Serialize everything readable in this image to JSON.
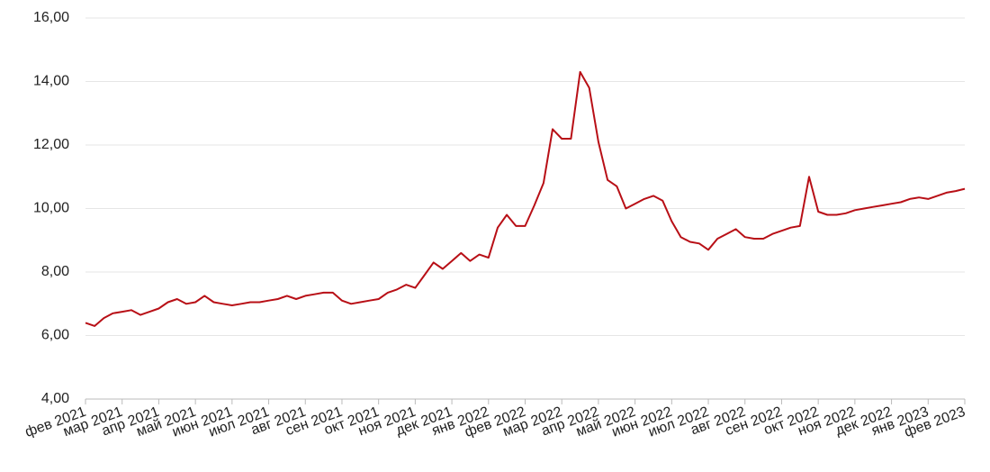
{
  "chart_data": {
    "type": "line",
    "categories": [
      "фев 2021",
      null,
      null,
      null,
      "мар 2021",
      null,
      null,
      null,
      "апр 2021",
      null,
      null,
      null,
      "май 2021",
      null,
      null,
      null,
      "июн 2021",
      null,
      null,
      null,
      "июл 2021",
      null,
      null,
      null,
      "авг 2021",
      null,
      null,
      null,
      "сен 2021",
      null,
      null,
      null,
      "окт 2021",
      null,
      null,
      null,
      "ноя 2021",
      null,
      null,
      null,
      "дек 2021",
      null,
      null,
      null,
      "янв 2022",
      null,
      null,
      null,
      "фев 2022",
      null,
      null,
      null,
      "мар 2022",
      null,
      null,
      null,
      "апр 2022",
      null,
      null,
      null,
      "май 2022",
      null,
      null,
      null,
      "июн 2022",
      null,
      null,
      null,
      "июл 2022",
      null,
      null,
      null,
      "авг 2022",
      null,
      null,
      null,
      "сен 2022",
      null,
      null,
      null,
      "окт 2022",
      null,
      null,
      null,
      "ноя 2022",
      null,
      null,
      null,
      "дек 2022",
      null,
      null,
      null,
      "янв 2023",
      null,
      null,
      null,
      "фев 2023"
    ],
    "series": [
      {
        "color": "#b80f16",
        "values": [
          6.4,
          6.3,
          6.55,
          6.7,
          6.75,
          6.8,
          6.65,
          6.75,
          6.85,
          7.05,
          7.15,
          7.0,
          7.05,
          7.25,
          7.05,
          7.0,
          6.95,
          7.0,
          7.05,
          7.05,
          7.1,
          7.15,
          7.25,
          7.15,
          7.25,
          7.3,
          7.35,
          7.35,
          7.1,
          7.0,
          7.05,
          7.1,
          7.15,
          7.35,
          7.45,
          7.6,
          7.5,
          7.9,
          8.3,
          8.1,
          8.35,
          8.6,
          8.35,
          8.55,
          8.45,
          9.4,
          9.8,
          9.45,
          9.45,
          10.1,
          10.8,
          12.5,
          12.2,
          12.2,
          14.3,
          13.8,
          12.1,
          10.9,
          10.7,
          10.0,
          10.15,
          10.3,
          10.4,
          10.25,
          9.6,
          9.1,
          8.95,
          8.9,
          8.7,
          9.05,
          9.2,
          9.35,
          9.1,
          9.05,
          9.05,
          9.2,
          9.3,
          9.4,
          9.45,
          11.0,
          9.9,
          9.8,
          9.8,
          9.85,
          9.95,
          10.0,
          10.05,
          10.1,
          10.15,
          10.2,
          10.3,
          10.35,
          10.3,
          10.4,
          10.5,
          10.55,
          10.62
        ]
      }
    ],
    "ylim": [
      4,
      16
    ],
    "yticks": [
      {
        "value": 4,
        "label": "4,00"
      },
      {
        "value": 6,
        "label": "6,00"
      },
      {
        "value": 8,
        "label": "8,00"
      },
      {
        "value": 10,
        "label": "10,00"
      },
      {
        "value": 12,
        "label": "12,00"
      },
      {
        "value": 14,
        "label": "14,00"
      },
      {
        "value": 16,
        "label": "16,00"
      }
    ],
    "grid": true
  }
}
